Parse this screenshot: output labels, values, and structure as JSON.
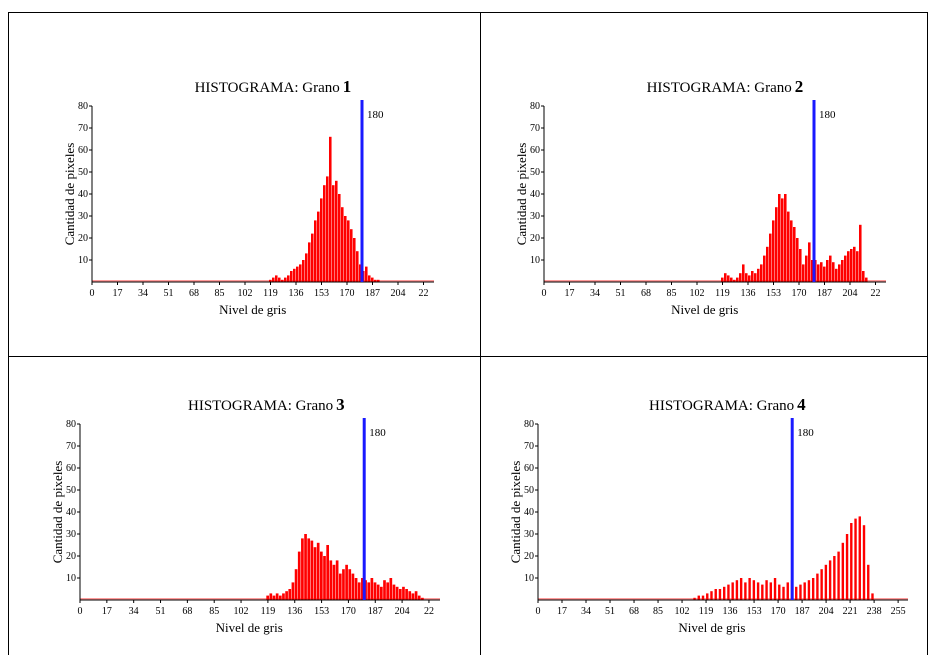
{
  "colors": {
    "bar": "#ff0000",
    "threshold": "#1a1aff",
    "baseline": "#ff9a9a",
    "border": "#000000"
  },
  "chart_data": [
    {
      "type": "bar",
      "title": "HISTOGRAMA: Grano",
      "title_number": "1",
      "xlabel": "Nivel de gris",
      "ylabel": "Cantidad de pixeles",
      "xlim": [
        0,
        228
      ],
      "ylim": [
        0,
        80
      ],
      "xticks": [
        "0",
        "17",
        "34",
        "51",
        "68",
        "85",
        "102",
        "119",
        "136",
        "153",
        "170",
        "187",
        "204",
        "22"
      ],
      "yticks": [
        "10",
        "20",
        "30",
        "40",
        "50",
        "60",
        "70",
        "80"
      ],
      "threshold": {
        "value": 180,
        "label": "180"
      },
      "x": [
        118,
        120,
        122,
        124,
        126,
        128,
        130,
        132,
        134,
        136,
        138,
        140,
        142,
        144,
        146,
        148,
        150,
        152,
        154,
        156,
        158,
        160,
        162,
        164,
        166,
        168,
        170,
        172,
        174,
        176,
        178,
        180,
        182,
        184,
        186,
        188,
        190
      ],
      "values": [
        1,
        2,
        3,
        2,
        1,
        2,
        3,
        5,
        6,
        7,
        8,
        10,
        13,
        18,
        22,
        28,
        32,
        38,
        44,
        48,
        66,
        44,
        46,
        40,
        34,
        30,
        28,
        24,
        20,
        14,
        8,
        5,
        7,
        3,
        2,
        1,
        1
      ]
    },
    {
      "type": "bar",
      "title": "HISTOGRAMA: Grano",
      "title_number": "2",
      "xlabel": "Nivel de gris",
      "ylabel": "Cantidad de pixeles",
      "xlim": [
        0,
        228
      ],
      "ylim": [
        0,
        80
      ],
      "xticks": [
        "0",
        "17",
        "34",
        "51",
        "68",
        "85",
        "102",
        "119",
        "136",
        "153",
        "170",
        "187",
        "204",
        "22"
      ],
      "yticks": [
        "10",
        "20",
        "30",
        "40",
        "50",
        "60",
        "70",
        "80"
      ],
      "threshold": {
        "value": 180,
        "label": "180"
      },
      "x": [
        118,
        120,
        122,
        124,
        126,
        128,
        130,
        132,
        134,
        136,
        138,
        140,
        142,
        144,
        146,
        148,
        150,
        152,
        154,
        156,
        158,
        160,
        162,
        164,
        166,
        168,
        170,
        172,
        174,
        176,
        178,
        180,
        182,
        184,
        186,
        188,
        190,
        192,
        194,
        196,
        198,
        200,
        202,
        204,
        206,
        208,
        210,
        212,
        214
      ],
      "values": [
        2,
        4,
        3,
        2,
        1,
        2,
        4,
        8,
        4,
        3,
        5,
        4,
        6,
        8,
        12,
        16,
        22,
        28,
        34,
        40,
        38,
        40,
        32,
        28,
        25,
        20,
        15,
        8,
        12,
        18,
        10,
        10,
        8,
        9,
        7,
        10,
        12,
        9,
        6,
        8,
        10,
        12,
        14,
        15,
        16,
        14,
        26,
        5,
        2
      ],
      "threshold_label_note": ""
    },
    {
      "type": "bar",
      "title": "HISTOGRAMA: Grano",
      "title_number": "3",
      "xlabel": "Nivel de gris",
      "ylabel": "Cantidad de pixeles",
      "xlim": [
        0,
        228
      ],
      "ylim": [
        0,
        80
      ],
      "xticks": [
        "0",
        "17",
        "34",
        "51",
        "68",
        "85",
        "102",
        "119",
        "136",
        "153",
        "170",
        "187",
        "204",
        "22"
      ],
      "yticks": [
        "10",
        "20",
        "30",
        "40",
        "50",
        "60",
        "70",
        "80"
      ],
      "threshold": {
        "value": 180,
        "label": "180"
      },
      "x": [
        118,
        120,
        122,
        124,
        126,
        128,
        130,
        132,
        134,
        136,
        138,
        140,
        142,
        144,
        146,
        148,
        150,
        152,
        154,
        156,
        158,
        160,
        162,
        164,
        166,
        168,
        170,
        172,
        174,
        176,
        178,
        180,
        182,
        184,
        186,
        188,
        190,
        192,
        194,
        196,
        198,
        200,
        202,
        204,
        206,
        208,
        210,
        212,
        214,
        216
      ],
      "values": [
        2,
        3,
        2,
        3,
        2,
        3,
        4,
        5,
        8,
        14,
        22,
        28,
        30,
        28,
        27,
        24,
        26,
        22,
        20,
        25,
        18,
        16,
        18,
        12,
        14,
        16,
        14,
        12,
        10,
        8,
        10,
        9,
        8,
        10,
        8,
        7,
        6,
        9,
        8,
        10,
        7,
        6,
        5,
        6,
        5,
        4,
        3,
        4,
        2,
        1
      ]
    },
    {
      "type": "bar",
      "title": "HISTOGRAMA: Grano",
      "title_number": "4",
      "xlabel": "Nivel de gris",
      "ylabel": "Cantidad de pixeles",
      "xlim": [
        0,
        262
      ],
      "ylim": [
        0,
        80
      ],
      "xticks": [
        "0",
        "17",
        "34",
        "51",
        "68",
        "85",
        "102",
        "119",
        "136",
        "153",
        "170",
        "187",
        "204",
        "221",
        "238",
        "255"
      ],
      "yticks": [
        "10",
        "20",
        "30",
        "40",
        "50",
        "60",
        "70",
        "80"
      ],
      "threshold": {
        "value": 180,
        "label": "180"
      },
      "x": [
        110,
        113,
        116,
        119,
        122,
        125,
        128,
        131,
        134,
        137,
        140,
        143,
        146,
        149,
        152,
        155,
        158,
        161,
        164,
        167,
        170,
        173,
        176,
        179,
        182,
        185,
        188,
        191,
        194,
        197,
        200,
        203,
        206,
        209,
        212,
        215,
        218,
        221,
        224,
        227,
        230,
        233,
        236
      ],
      "values": [
        1,
        2,
        2,
        3,
        4,
        5,
        5,
        6,
        7,
        8,
        9,
        10,
        8,
        10,
        9,
        8,
        7,
        9,
        8,
        10,
        7,
        6,
        8,
        9,
        6,
        7,
        8,
        9,
        10,
        12,
        14,
        16,
        18,
        20,
        22,
        26,
        30,
        35,
        37,
        38,
        34,
        16,
        3
      ]
    }
  ]
}
